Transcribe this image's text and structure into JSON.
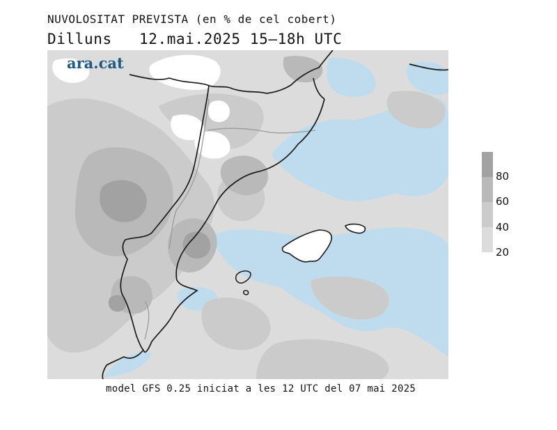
{
  "title": {
    "line1": "NUVOLOSITAT PREVISTA (en % de cel cobert)",
    "day": "Dilluns",
    "datetime": "12.mai.2025 15–18h UTC"
  },
  "logo": "ara.cat",
  "legend": {
    "labels": [
      "80",
      "60",
      "40",
      "20"
    ],
    "colors": [
      "#a2a2a2",
      "#b9b9b9",
      "#cbcbcb",
      "#dcdcdc"
    ]
  },
  "colors": {
    "sea_clear": "#bfdcee",
    "land_clear": "#ffffff",
    "coast": "#1a1a1a",
    "border": "#9a9a9a"
  },
  "footer": "model GFS 0.25 iniciat a les 12 UTC del 07 mai 2025"
}
